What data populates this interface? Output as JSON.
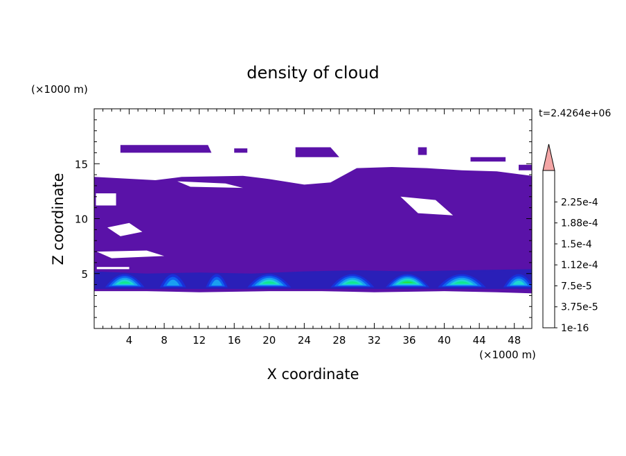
{
  "chart_data": {
    "type": "heatmap",
    "title": "density of cloud",
    "xlabel": "X coordinate",
    "ylabel": "Z coordinate",
    "x_unit": "(×1000 m)",
    "y_unit": "(×1000 m)",
    "time_label": "t=2.4264e+06",
    "xlim": [
      0,
      50
    ],
    "ylim": [
      0,
      20
    ],
    "x_ticks": [
      4,
      8,
      12,
      16,
      20,
      24,
      28,
      32,
      36,
      40,
      44,
      48
    ],
    "y_ticks": [
      5,
      10,
      15
    ],
    "colorbar": {
      "labels": [
        "1e-16",
        "3.75e-5",
        "7.5e-5",
        "1.12e-4",
        "1.5e-4",
        "1.88e-4",
        "2.25e-4"
      ],
      "colors": [
        "#5a12a8",
        "#2a1fb8",
        "#1a2fd8",
        "#1060f0",
        "#1aa0f0",
        "#20d8d0",
        "#10e890",
        "#30dd30",
        "#a0ee10",
        "#ffff00",
        "#ffd000",
        "#ffa000",
        "#ff7000",
        "#ff4000",
        "#ff1010"
      ],
      "extend_color": "#f4a6a6"
    },
    "fill_color": "#5a12a8",
    "cloud_layers": [
      {
        "name": "upper-cloud-1",
        "polygon": [
          [
            3,
            16.7
          ],
          [
            13,
            16.7
          ],
          [
            13.4,
            16.0
          ],
          [
            3,
            16.0
          ]
        ]
      },
      {
        "name": "upper-cloud-2",
        "polygon": [
          [
            16,
            16.4
          ],
          [
            17.5,
            16.4
          ],
          [
            17.5,
            16.0
          ],
          [
            16,
            16.0
          ]
        ]
      },
      {
        "name": "upper-cloud-3",
        "polygon": [
          [
            23,
            16.5
          ],
          [
            27,
            16.5
          ],
          [
            28,
            15.6
          ],
          [
            23,
            15.6
          ]
        ]
      },
      {
        "name": "upper-cloud-4",
        "polygon": [
          [
            37,
            16.5
          ],
          [
            38,
            16.5
          ],
          [
            38,
            15.8
          ],
          [
            37,
            15.8
          ]
        ]
      },
      {
        "name": "upper-cloud-5",
        "polygon": [
          [
            43,
            15.6
          ],
          [
            47,
            15.6
          ],
          [
            47,
            15.2
          ],
          [
            43,
            15.2
          ]
        ]
      },
      {
        "name": "upper-cloud-6",
        "polygon": [
          [
            48.5,
            14.9
          ],
          [
            50,
            14.9
          ],
          [
            50,
            14.4
          ],
          [
            48.5,
            14.4
          ]
        ]
      },
      {
        "name": "main-cloud-deck",
        "polygon": [
          [
            0,
            13.8
          ],
          [
            7,
            13.5
          ],
          [
            10,
            13.8
          ],
          [
            17,
            13.9
          ],
          [
            20,
            13.6
          ],
          [
            24,
            13.1
          ],
          [
            27,
            13.3
          ],
          [
            30,
            14.6
          ],
          [
            34,
            14.7
          ],
          [
            38,
            14.6
          ],
          [
            42,
            14.4
          ],
          [
            46,
            14.3
          ],
          [
            50,
            13.9
          ],
          [
            50,
            3.2
          ],
          [
            46,
            3.3
          ],
          [
            40,
            3.4
          ],
          [
            32,
            3.3
          ],
          [
            26,
            3.4
          ],
          [
            20,
            3.4
          ],
          [
            12,
            3.3
          ],
          [
            6,
            3.4
          ],
          [
            0,
            3.4
          ]
        ]
      }
    ],
    "convective_cells": [
      {
        "x_center": 3.5,
        "width": 4.5,
        "peak_level": 4
      },
      {
        "x_center": 9.0,
        "width": 3.0,
        "peak_level": 2
      },
      {
        "x_center": 14.0,
        "width": 2.5,
        "peak_level": 2
      },
      {
        "x_center": 20.0,
        "width": 5.0,
        "peak_level": 4
      },
      {
        "x_center": 29.5,
        "width": 5.0,
        "peak_level": 4
      },
      {
        "x_center": 35.8,
        "width": 5.0,
        "peak_level": 5
      },
      {
        "x_center": 42.0,
        "width": 5.5,
        "peak_level": 4
      },
      {
        "x_center": 48.5,
        "width": 3.5,
        "peak_level": 3
      }
    ]
  }
}
